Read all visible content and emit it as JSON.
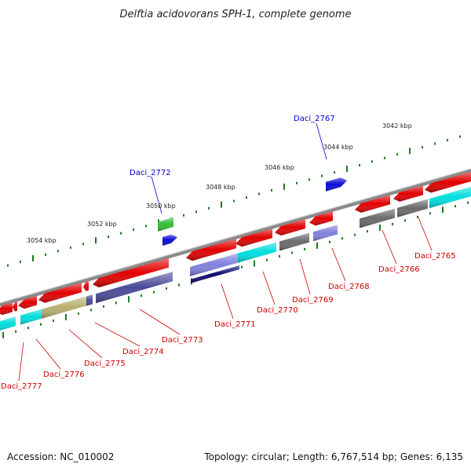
{
  "title": "Delftia acidovorans SPH-1, complete genome",
  "footer": {
    "accession": "Accession: NC_010002",
    "topology": "Topology: circular; Length: 6,767,514 bp; Genes: 6,135"
  },
  "colors": {
    "plus_strand_label": "#0000cc",
    "minus_strand_label": "#cc0000",
    "backbone": "#8a8a8a",
    "tick": "#1e7a1e",
    "gene_red": "#e20000",
    "gene_blue": "#0a0ad8",
    "gene_green": "#33bb33",
    "gene_cyan": "#00dddd",
    "gene_gray": "#6a6a6a",
    "gene_slate": "#4a4a9a",
    "gene_navy": "#0a0a70",
    "gene_lavender": "#8080dd",
    "gene_khaki": "#b8b070"
  },
  "scale_labels": [
    "3054 kbp",
    "3052 kbp",
    "3050 kbp",
    "3048 kbp",
    "3046 kbp",
    "3044 kbp",
    "3042 kbp"
  ],
  "gene_labels_plus": [
    "Daci_2772",
    "Daci_2767"
  ],
  "gene_labels_minus": [
    "Daci_2777",
    "Daci_2776",
    "Daci_2775",
    "Daci_2774",
    "Daci_2773",
    "Daci_2771",
    "Daci_2770",
    "Daci_2769",
    "Daci_2768",
    "Daci_2766",
    "Daci_2765"
  ]
}
